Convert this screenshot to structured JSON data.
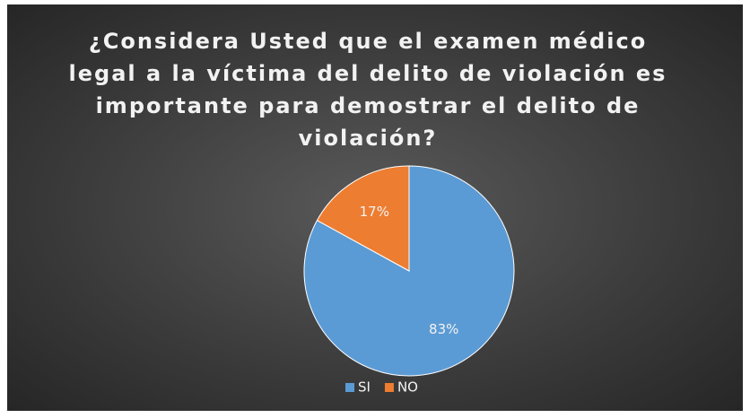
{
  "chart_data": {
    "type": "pie",
    "title": "¿Considera Usted que el examen médico legal a la víctima del delito de violación es importante para demostrar el delito de violación?",
    "categories": [
      "SI",
      "NO"
    ],
    "values": [
      83,
      17
    ],
    "value_labels": [
      "83%",
      "17%"
    ],
    "colors": [
      "#5b9bd5",
      "#ed7d31"
    ],
    "legend": "bottom"
  }
}
